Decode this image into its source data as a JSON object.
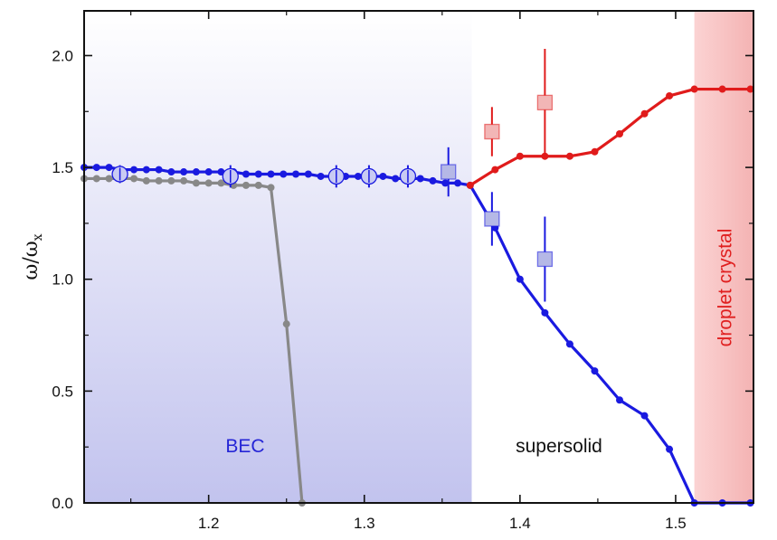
{
  "chart_data": {
    "type": "line",
    "title": "",
    "xlabel": "",
    "ylabel": "ω/ω",
    "ylabel_subscript": "x",
    "xlim": [
      1.12,
      1.55
    ],
    "ylim": [
      0.0,
      2.2
    ],
    "x_ticks": [
      1.2,
      1.3,
      1.4,
      1.5
    ],
    "x_tick_labels": [
      "1.2",
      "1.3",
      "1.4",
      "1.5"
    ],
    "y_ticks": [
      0.0,
      0.5,
      1.0,
      1.5,
      2.0
    ],
    "y_tick_labels": [
      "0.0",
      "0.5",
      "1.0",
      "1.5",
      "2.0"
    ],
    "grid": false,
    "regions": [
      {
        "label": "BEC",
        "x0": 1.12,
        "x1": 1.369,
        "color": "#2525d6",
        "fill": "#c7c8ee"
      },
      {
        "label": "supersolid",
        "x0": 1.369,
        "x1": 1.512,
        "color": "#111111",
        "fill": "#ffffff"
      },
      {
        "label": "droplet crystal",
        "x0": 1.512,
        "x1": 1.55,
        "color": "#e02020",
        "fill": "#f8c4c4"
      }
    ],
    "series": [
      {
        "color": "#1a1ae0",
        "x": [
          1.12,
          1.128,
          1.136,
          1.144,
          1.152,
          1.16,
          1.168,
          1.176,
          1.184,
          1.192,
          1.2,
          1.208,
          1.216,
          1.224,
          1.232,
          1.24,
          1.248,
          1.256,
          1.264,
          1.272,
          1.28,
          1.288,
          1.296,
          1.304,
          1.312,
          1.32,
          1.328,
          1.336,
          1.344,
          1.352,
          1.36,
          1.368,
          1.384,
          1.4,
          1.416,
          1.432,
          1.448,
          1.464,
          1.48,
          1.496,
          1.512,
          1.53,
          1.548
        ],
        "y": [
          1.5,
          1.5,
          1.5,
          1.49,
          1.49,
          1.49,
          1.49,
          1.48,
          1.48,
          1.48,
          1.48,
          1.48,
          1.48,
          1.47,
          1.47,
          1.47,
          1.47,
          1.47,
          1.47,
          1.46,
          1.46,
          1.46,
          1.46,
          1.46,
          1.46,
          1.45,
          1.45,
          1.45,
          1.44,
          1.43,
          1.43,
          1.42,
          1.23,
          1.0,
          0.85,
          0.71,
          0.59,
          0.46,
          0.39,
          0.24,
          0.0,
          0.0,
          0.0
        ]
      },
      {
        "color": "#e01b1b",
        "x": [
          1.368,
          1.384,
          1.4,
          1.416,
          1.432,
          1.448,
          1.464,
          1.48,
          1.496,
          1.512,
          1.53,
          1.548
        ],
        "y": [
          1.42,
          1.49,
          1.55,
          1.55,
          1.55,
          1.57,
          1.65,
          1.74,
          1.82,
          1.85,
          1.85,
          1.85
        ]
      },
      {
        "color": "#888888",
        "x": [
          1.12,
          1.128,
          1.136,
          1.144,
          1.152,
          1.16,
          1.168,
          1.176,
          1.184,
          1.192,
          1.2,
          1.208,
          1.216,
          1.224,
          1.232,
          1.24,
          1.25,
          1.26
        ],
        "y": [
          1.45,
          1.45,
          1.45,
          1.45,
          1.45,
          1.44,
          1.44,
          1.44,
          1.44,
          1.43,
          1.43,
          1.43,
          1.42,
          1.42,
          1.42,
          1.41,
          0.8,
          0.0
        ]
      }
    ],
    "experimental_points": [
      {
        "marker": "circle",
        "color": "#1a1ae0",
        "fill": "#c9cbf3",
        "points": [
          {
            "x": 1.143,
            "y": 1.47,
            "err": 0.04
          },
          {
            "x": 1.214,
            "y": 1.46,
            "err": 0.05
          },
          {
            "x": 1.282,
            "y": 1.46,
            "err": 0.05
          },
          {
            "x": 1.303,
            "y": 1.46,
            "err": 0.05
          },
          {
            "x": 1.328,
            "y": 1.46,
            "err": 0.05
          }
        ]
      },
      {
        "marker": "square",
        "color": "#1a1ae0",
        "fill": "#b5b8e6",
        "points": [
          {
            "x": 1.354,
            "y": 1.48,
            "err": 0.11
          },
          {
            "x": 1.382,
            "y": 1.27,
            "err": 0.12
          },
          {
            "x": 1.416,
            "y": 1.09,
            "err": 0.19
          }
        ]
      },
      {
        "marker": "square",
        "color": "#e01b1b",
        "fill": "#f2b6b6",
        "points": [
          {
            "x": 1.382,
            "y": 1.66,
            "err": 0.11
          },
          {
            "x": 1.416,
            "y": 1.79,
            "err": 0.24
          }
        ]
      }
    ]
  }
}
